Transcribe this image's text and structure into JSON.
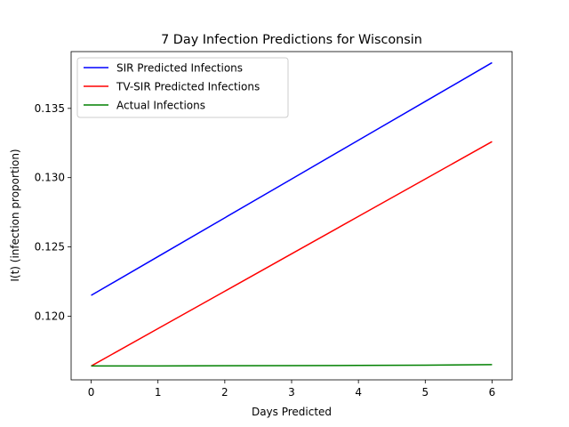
{
  "chart_data": {
    "type": "line",
    "title": "7 Day Infection Predictions for Wisconsin",
    "xlabel": "Days Predicted",
    "ylabel": "I(t) (infection proportion)",
    "xlim": [
      -0.3,
      6.3
    ],
    "ylim": [
      0.1154,
      0.1391
    ],
    "xticks": [
      0,
      1,
      2,
      3,
      4,
      5,
      6
    ],
    "yticks": [
      0.12,
      0.125,
      0.13,
      0.135
    ],
    "ytick_labels": [
      "0.120",
      "0.125",
      "0.130",
      "0.135"
    ],
    "grid": false,
    "legend_position": "upper-left",
    "x": [
      0,
      1,
      2,
      3,
      4,
      5,
      6
    ],
    "series": [
      {
        "name": "SIR Predicted Infections",
        "color": "#0000ff",
        "values": [
          0.1215,
          0.1243,
          0.1271,
          0.1299,
          0.1327,
          0.1355,
          0.1383
        ]
      },
      {
        "name": "TV-SIR Predicted Infections",
        "color": "#ff0000",
        "values": [
          0.1164,
          0.1191,
          0.1218,
          0.1245,
          0.1272,
          0.1299,
          0.1326
        ]
      },
      {
        "name": "Actual Infections",
        "color": "#008000",
        "values": [
          0.1164,
          0.1164,
          0.11642,
          0.11643,
          0.11644,
          0.11646,
          0.1165
        ]
      }
    ]
  }
}
